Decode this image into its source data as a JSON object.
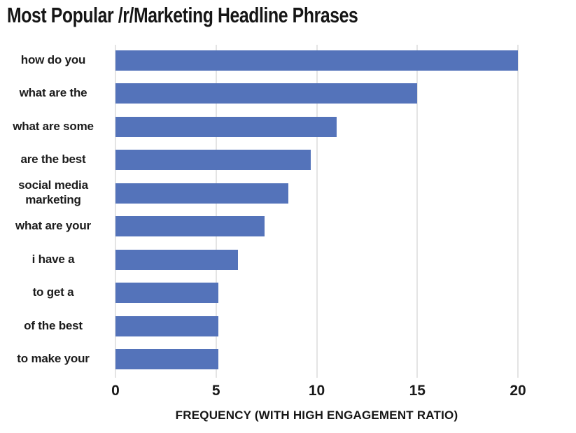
{
  "chart_data": {
    "type": "bar",
    "orientation": "horizontal",
    "title": "Most Popular /r/Marketing Headline Phrases",
    "categories": [
      "how do you",
      "what are the",
      "what are some",
      "are the best",
      "social media marketing",
      "what are your",
      "i have a",
      "to get a",
      "of the best",
      "to make your"
    ],
    "values": [
      20,
      15,
      11,
      9.7,
      8.6,
      7.4,
      6.1,
      5.1,
      5.1,
      5.1
    ],
    "xlabel": "FREQUENCY (WITH HIGH ENGAGEMENT RATIO)",
    "ylabel": "",
    "xlim": [
      0,
      20
    ],
    "xticks": [
      0,
      5,
      10,
      15,
      20
    ],
    "grid": "vertical gridlines at each x tick",
    "legend": "none",
    "colors": {
      "bar": "#5473ba",
      "gridline": "#e4e4e4",
      "text": "#1c1c1c",
      "background": "#ffffff"
    }
  }
}
